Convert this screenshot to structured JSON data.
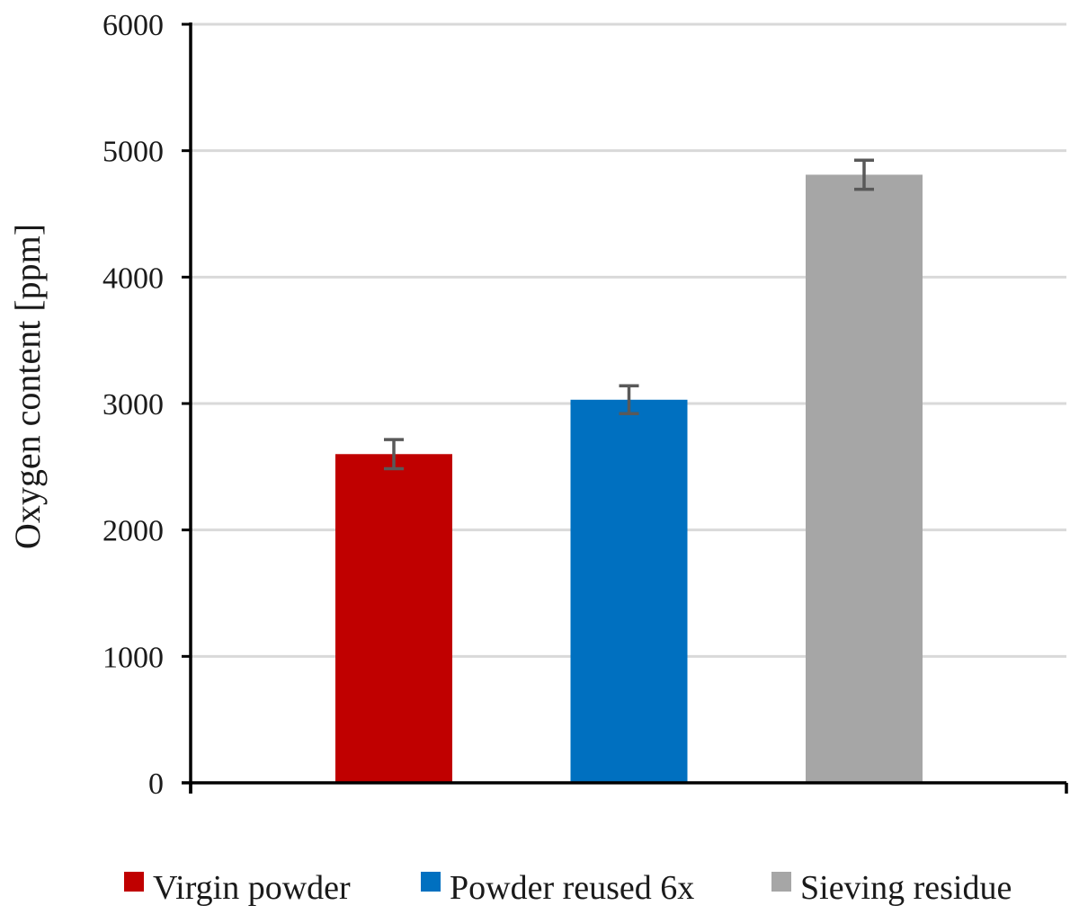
{
  "chart_data": {
    "type": "bar",
    "categories": [
      "Virgin powder",
      "Powder reused 6x",
      "Sieving residue"
    ],
    "values": [
      2600,
      3030,
      4810
    ],
    "error": [
      115,
      110,
      115
    ],
    "colors": [
      "#C00000",
      "#0070C0",
      "#A6A6A6"
    ],
    "title": "",
    "xlabel": "",
    "ylabel": "Oxygen content [ppm]",
    "ylim": [
      0,
      6000
    ],
    "yticks": [
      0,
      1000,
      2000,
      3000,
      4000,
      5000,
      6000
    ],
    "grid": true,
    "legend": {
      "position": "bottom",
      "entries": [
        "Virgin powder",
        "Powder reused 6x",
        "Sieving residue"
      ]
    },
    "error_bar_color": "#595959",
    "gridline_color": "#D9D9D9",
    "axis_color": "#000000"
  }
}
